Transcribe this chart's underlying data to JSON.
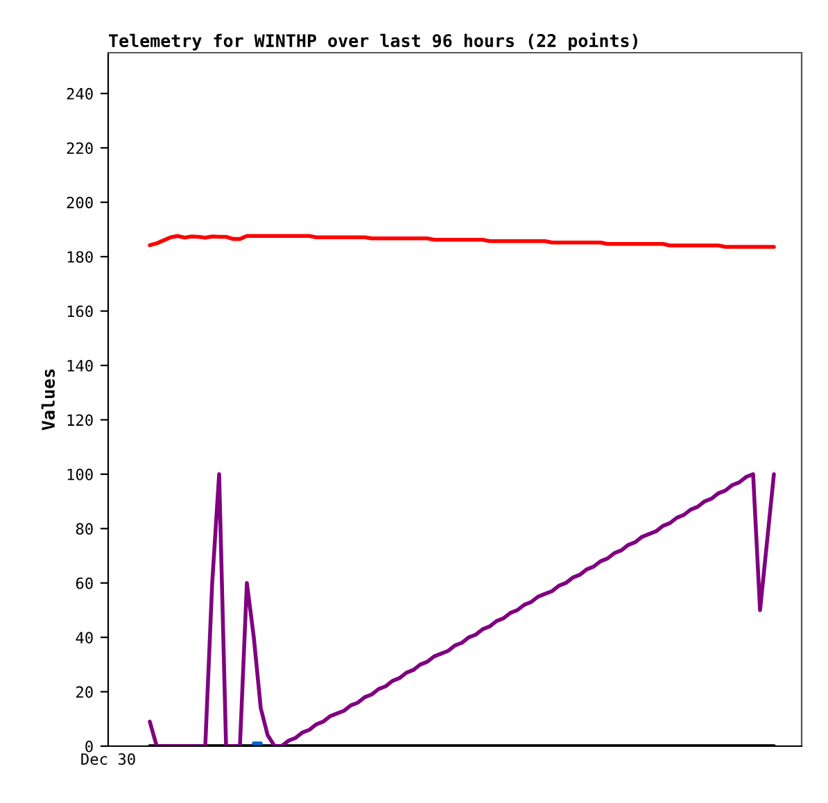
{
  "chart_data": {
    "type": "line",
    "title": "Telemetry for WINTHP over last 96 hours (22 points)",
    "ylabel": "Values",
    "categories": [
      "Dec 30",
      null,
      null,
      null,
      null,
      null,
      null,
      null,
      null,
      null,
      null,
      null,
      null,
      null,
      null,
      null,
      null,
      null,
      null,
      null,
      null,
      null,
      null,
      null,
      null,
      null,
      null,
      null,
      null,
      null,
      null,
      null,
      null,
      null,
      null,
      null,
      null,
      null,
      null,
      null,
      null,
      null,
      null,
      null,
      null,
      null,
      null,
      null,
      null,
      null,
      null,
      null,
      null,
      null,
      null,
      null,
      null,
      null,
      null,
      null,
      null,
      null,
      null,
      null,
      null,
      null,
      null,
      null,
      null,
      null,
      null,
      null,
      null,
      null,
      null,
      null,
      null,
      null,
      null,
      null,
      null,
      null,
      null,
      null,
      null,
      null,
      null,
      null,
      null,
      null,
      null,
      null,
      null,
      null,
      null,
      null,
      null,
      null,
      null,
      null,
      null
    ],
    "ylim": [
      0,
      255
    ],
    "yticks": [
      0,
      20,
      40,
      60,
      80,
      100,
      120,
      140,
      160,
      180,
      200,
      220,
      240
    ],
    "grid": false,
    "legend": false,
    "series": [
      {
        "color": "#000000",
        "values": [
          null,
          null,
          null,
          null,
          null,
          null,
          0,
          0,
          0,
          0,
          0,
          0,
          0,
          0,
          0,
          0,
          0,
          0,
          0,
          0,
          0,
          0,
          0,
          0,
          0,
          0,
          0,
          0,
          0,
          0,
          0,
          0,
          0,
          0,
          0,
          0,
          0,
          0,
          0,
          0,
          0,
          0,
          0,
          0,
          0,
          0,
          0,
          0,
          0,
          0,
          0,
          0,
          0,
          0,
          0,
          0,
          0,
          0,
          0,
          0,
          0,
          0,
          0,
          0,
          0,
          0,
          0,
          0,
          0,
          0,
          0,
          0,
          0,
          0,
          0,
          0,
          0,
          0,
          0,
          0,
          0,
          0,
          0,
          0,
          0,
          0,
          0,
          0,
          0,
          0,
          0,
          0,
          0,
          0,
          0,
          0,
          0,
          null,
          null,
          null,
          null
        ]
      },
      {
        "color": "#0066cc",
        "values": [
          null,
          null,
          null,
          null,
          null,
          null,
          null,
          null,
          null,
          null,
          null,
          null,
          null,
          null,
          null,
          null,
          null,
          null,
          null,
          null,
          null,
          1,
          1,
          null,
          null,
          null,
          null,
          null,
          null,
          null,
          null,
          null,
          null,
          null,
          null,
          null,
          null,
          null,
          null,
          null,
          null,
          null,
          null,
          null,
          null,
          null,
          null,
          null,
          null,
          null,
          null,
          null,
          null,
          null,
          null,
          null,
          null,
          null,
          null,
          null,
          null,
          null,
          null,
          null,
          null,
          null,
          null,
          null,
          null,
          null,
          null,
          null,
          null,
          null,
          null,
          null,
          null,
          null,
          null,
          null,
          null,
          null,
          null,
          null,
          null,
          null,
          null,
          null,
          null,
          null,
          null,
          null,
          null,
          null,
          null,
          null,
          null,
          null,
          null,
          null,
          null
        ]
      },
      {
        "color": "#ff0000",
        "values": [
          null,
          null,
          null,
          null,
          null,
          null,
          184.2,
          184.9,
          186,
          187.1,
          187.6,
          187,
          187.4,
          187.3,
          187,
          187.4,
          187.3,
          187.3,
          186.5,
          186.5,
          187.6,
          187.6,
          187.6,
          187.6,
          187.6,
          187.6,
          187.6,
          187.6,
          187.6,
          187.6,
          187.1,
          187.1,
          187.1,
          187.1,
          187.1,
          187.1,
          187.1,
          187.1,
          186.7,
          186.7,
          186.7,
          186.7,
          186.7,
          186.7,
          186.7,
          186.7,
          186.7,
          186.2,
          186.2,
          186.2,
          186.2,
          186.2,
          186.2,
          186.2,
          186.2,
          185.7,
          185.7,
          185.7,
          185.7,
          185.7,
          185.7,
          185.7,
          185.7,
          185.7,
          185.2,
          185.2,
          185.2,
          185.2,
          185.2,
          185.2,
          185.2,
          185.2,
          184.7,
          184.7,
          184.7,
          184.7,
          184.7,
          184.7,
          184.7,
          184.7,
          184.7,
          184.1,
          184.1,
          184.1,
          184.1,
          184.1,
          184.1,
          184.1,
          184.1,
          183.6,
          183.6,
          183.6,
          183.6,
          183.6,
          183.6,
          183.6,
          183.6,
          null,
          null,
          null,
          null
        ]
      },
      {
        "color": "#800080",
        "values": [
          null,
          null,
          null,
          null,
          null,
          null,
          9,
          0,
          0,
          0,
          0,
          0,
          0,
          0,
          0,
          60,
          100,
          0,
          0,
          0,
          60,
          40,
          14,
          4,
          0,
          0,
          2,
          3,
          5,
          6,
          8,
          9,
          11,
          12,
          13,
          15,
          16,
          18,
          19,
          21,
          22,
          24,
          25,
          27,
          28,
          30,
          31,
          33,
          34,
          35,
          37,
          38,
          40,
          41,
          43,
          44,
          46,
          47,
          49,
          50,
          52,
          53,
          55,
          56,
          57,
          59,
          60,
          62,
          63,
          65,
          66,
          68,
          69,
          71,
          72,
          74,
          75,
          77,
          78,
          79,
          81,
          82,
          84,
          85,
          87,
          88,
          90,
          91,
          93,
          94,
          96,
          97,
          99,
          100,
          50,
          75,
          100,
          null,
          null,
          null,
          null
        ]
      }
    ]
  }
}
